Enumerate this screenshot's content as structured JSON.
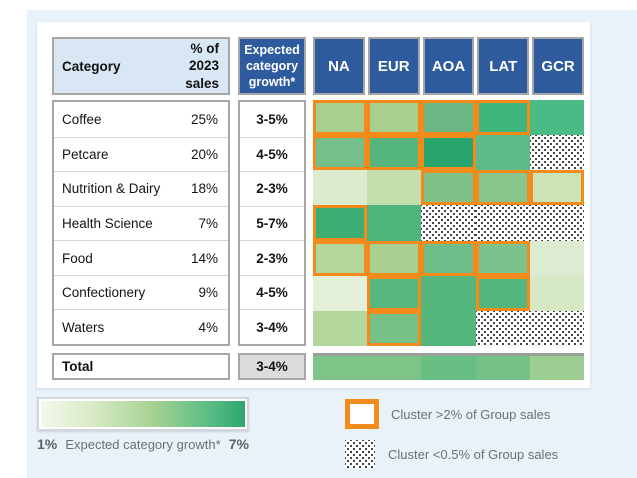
{
  "table": {
    "category_header": "Category",
    "sales_header": "% of 2023 sales",
    "growth_header": "Expected category growth*",
    "total_label": "Total",
    "total_growth": "3-4%"
  },
  "legend": {
    "gradient_min": "1%",
    "gradient_label": "Expected category growth*",
    "gradient_max": "7%",
    "cluster_large": "Cluster >2% of Group sales",
    "cluster_small": "Cluster <0.5% of Group sales"
  },
  "colors": {
    "navy": "#2d5b9d",
    "orange": "#f28b1c",
    "header_blue": "#d9e6f3",
    "page_bg": "#e9f2f9"
  },
  "chart_data": {
    "type": "heatmap",
    "columns": [
      "NA",
      "EUR",
      "AOA",
      "LAT",
      "GCR"
    ],
    "color_scale": {
      "min_label": "1%",
      "max_label": "7%",
      "label": "Expected category growth*",
      "min_color": "#f3f9ee",
      "max_color": "#2aa56e"
    },
    "cluster_encoding": {
      "orange_border": "Cluster >2% of Group sales",
      "plain": "Cluster 0.5-2% of Group sales",
      "dotted": "Cluster <0.5% of Group sales"
    },
    "rows": [
      {
        "category": "Coffee",
        "pct_2023_sales": "25%",
        "expected_growth": "3-5%",
        "cells": [
          {
            "region": "NA",
            "fill": "#a9cf90",
            "cluster": ">2%"
          },
          {
            "region": "EUR",
            "fill": "#a9cf90",
            "cluster": ">2%"
          },
          {
            "region": "AOA",
            "fill": "#6cb885",
            "cluster": ">2%"
          },
          {
            "region": "LAT",
            "fill": "#3eb67c",
            "cluster": ">2%"
          },
          {
            "region": "GCR",
            "fill": "#4abb85",
            "cluster": "0.5-2%"
          }
        ]
      },
      {
        "category": "Petcare",
        "pct_2023_sales": "20%",
        "expected_growth": "4-5%",
        "cells": [
          {
            "region": "NA",
            "fill": "#74bf8a",
            "cluster": ">2%"
          },
          {
            "region": "EUR",
            "fill": "#55b67d",
            "cluster": ">2%"
          },
          {
            "region": "AOA",
            "fill": "#27a56d",
            "cluster": ">2%"
          },
          {
            "region": "LAT",
            "fill": "#5eba87",
            "cluster": "0.5-2%"
          },
          {
            "region": "GCR",
            "fill": null,
            "cluster": "<0.5%"
          }
        ]
      },
      {
        "category": "Nutrition & Dairy",
        "pct_2023_sales": "18%",
        "expected_growth": "2-3%",
        "cells": [
          {
            "region": "NA",
            "fill": "#dceacd",
            "cluster": "0.5-2%"
          },
          {
            "region": "EUR",
            "fill": "#c4dfac",
            "cluster": "0.5-2%"
          },
          {
            "region": "AOA",
            "fill": "#7fc289",
            "cluster": ">2%"
          },
          {
            "region": "LAT",
            "fill": "#88c58d",
            "cluster": ">2%"
          },
          {
            "region": "GCR",
            "fill": "#cce3b8",
            "cluster": ">2%"
          }
        ]
      },
      {
        "category": "Health Science",
        "pct_2023_sales": "7%",
        "expected_growth": "5-7%",
        "cells": [
          {
            "region": "NA",
            "fill": "#3dad73",
            "cluster": ">2%"
          },
          {
            "region": "EUR",
            "fill": "#4db47b",
            "cluster": "0.5-2%"
          },
          {
            "region": "AOA",
            "fill": null,
            "cluster": "<0.5%"
          },
          {
            "region": "LAT",
            "fill": null,
            "cluster": "<0.5%"
          },
          {
            "region": "GCR",
            "fill": null,
            "cluster": "<0.5%"
          }
        ]
      },
      {
        "category": "Food",
        "pct_2023_sales": "14%",
        "expected_growth": "2-3%",
        "cells": [
          {
            "region": "NA",
            "fill": "#b3d69a",
            "cluster": ">2%"
          },
          {
            "region": "EUR",
            "fill": "#a8d093",
            "cluster": ">2%"
          },
          {
            "region": "AOA",
            "fill": "#6fbe8a",
            "cluster": ">2%"
          },
          {
            "region": "LAT",
            "fill": "#7cc28c",
            "cluster": ">2%"
          },
          {
            "region": "GCR",
            "fill": "#dcebd2",
            "cluster": "0.5-2%"
          }
        ]
      },
      {
        "category": "Confectionery",
        "pct_2023_sales": "9%",
        "expected_growth": "4-5%",
        "cells": [
          {
            "region": "NA",
            "fill": "#e4efd9",
            "cluster": "0.5-2%"
          },
          {
            "region": "EUR",
            "fill": "#58b77e",
            "cluster": ">2%"
          },
          {
            "region": "AOA",
            "fill": "#55b67d",
            "cluster": "0.5-2%"
          },
          {
            "region": "LAT",
            "fill": "#53b67e",
            "cluster": ">2%"
          },
          {
            "region": "GCR",
            "fill": "#d7e8c5",
            "cluster": "0.5-2%"
          }
        ]
      },
      {
        "category": "Waters",
        "pct_2023_sales": "4%",
        "expected_growth": "3-4%",
        "cells": [
          {
            "region": "NA",
            "fill": "#b2d69c",
            "cluster": "0.5-2%"
          },
          {
            "region": "EUR",
            "fill": "#77c189",
            "cluster": ">2%"
          },
          {
            "region": "AOA",
            "fill": "#55b67d",
            "cluster": "0.5-2%"
          },
          {
            "region": "LAT",
            "fill": null,
            "cluster": "<0.5%"
          },
          {
            "region": "GCR",
            "fill": null,
            "cluster": "<0.5%"
          }
        ]
      }
    ],
    "total_row": {
      "category": "Total",
      "expected_growth": "3-4%",
      "cells": [
        {
          "region": "NA",
          "fill": "#7ec489"
        },
        {
          "region": "EUR",
          "fill": "#7ec489"
        },
        {
          "region": "AOA",
          "fill": "#68bf84"
        },
        {
          "region": "LAT",
          "fill": "#74c187"
        },
        {
          "region": "GCR",
          "fill": "#9bce90"
        }
      ]
    }
  }
}
